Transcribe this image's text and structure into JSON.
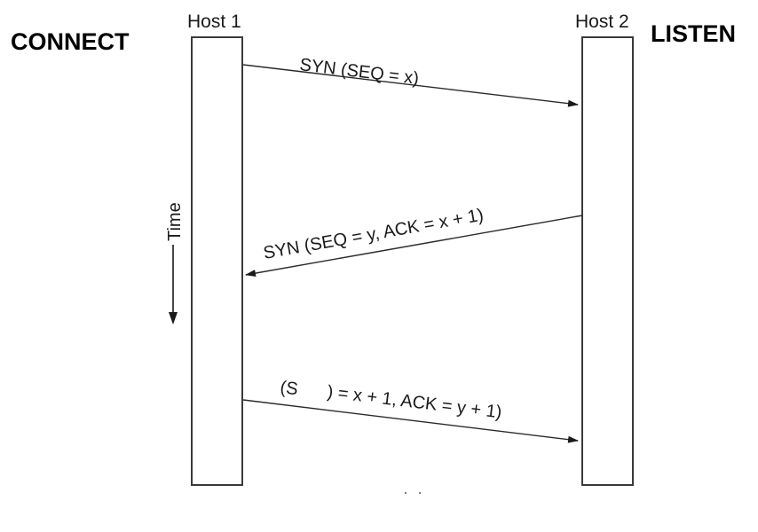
{
  "hosts": {
    "left": {
      "label": "Host 1",
      "state": "CONNECT"
    },
    "right": {
      "label": "Host 2",
      "state": "LISTEN"
    }
  },
  "time_axis": {
    "label": "Time"
  },
  "messages": [
    {
      "label": "SYN (SEQ = x)",
      "direction": "host1-to-host2"
    },
    {
      "label": "SYN (SEQ = y, ACK = x + 1)",
      "direction": "host2-to-host1"
    },
    {
      "label_start": "(S",
      "label_end": ") = x + 1, ACK = y + 1)",
      "direction": "host1-to-host2"
    }
  ],
  "colors": {
    "background": "#ffffff",
    "lines": "#2a2a2a",
    "text": "#1a1a1a"
  }
}
